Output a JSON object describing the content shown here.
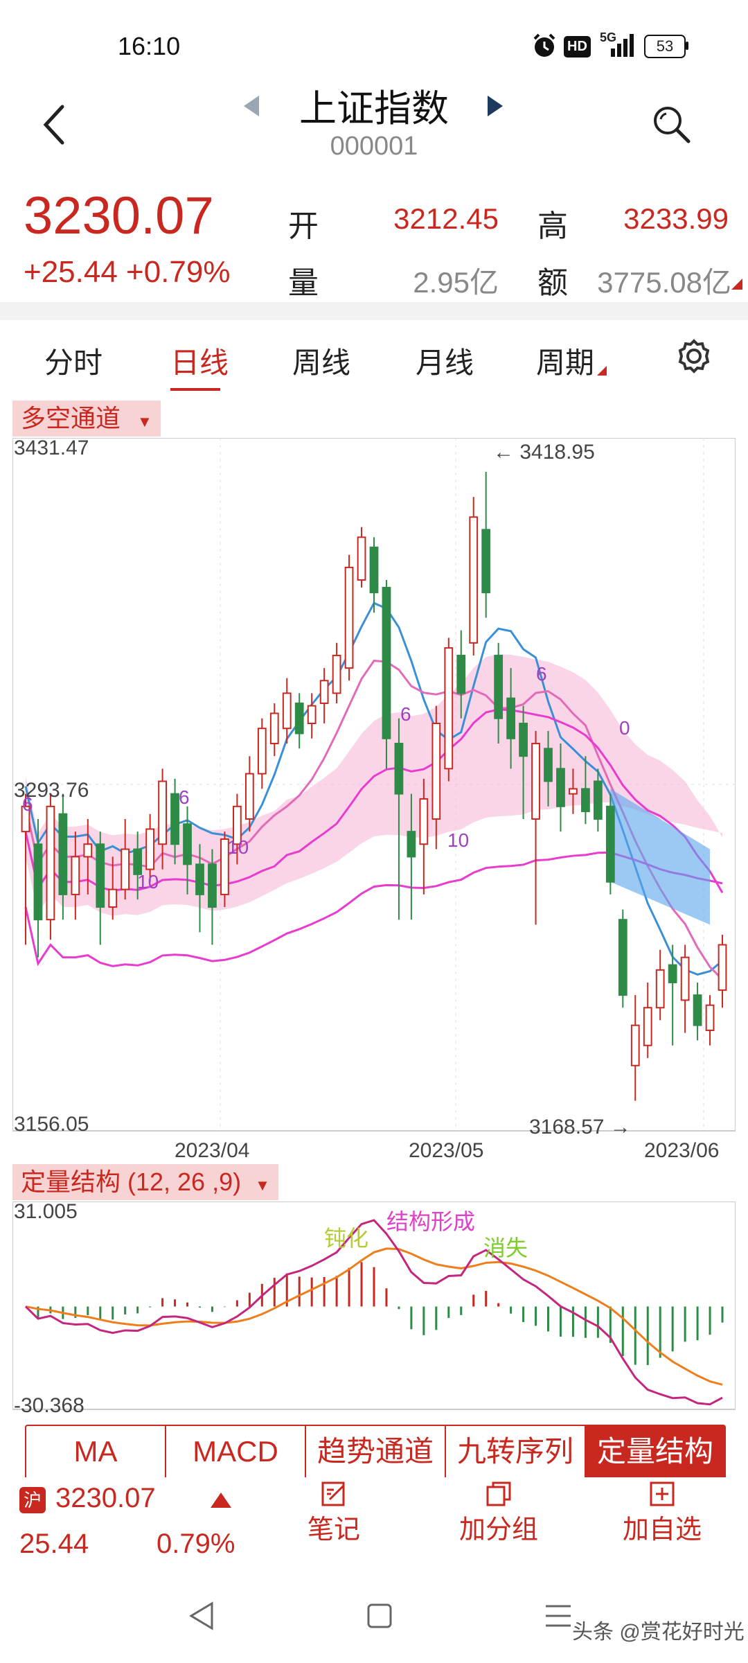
{
  "status": {
    "time": "16:10",
    "hd": "HD",
    "signal": "5G",
    "battery": "53"
  },
  "header": {
    "title": "上证指数",
    "code": "000001"
  },
  "quote": {
    "price": "3230.07",
    "change": "+25.44 +0.79%",
    "open_label": "开",
    "open": "3212.45",
    "high_label": "高",
    "high": "3233.99",
    "volume_label": "量",
    "volume": "2.95亿",
    "amount_label": "额",
    "amount": "3775.08亿"
  },
  "tabs": [
    "分时",
    "日线",
    "周线",
    "月线",
    "周期"
  ],
  "active_tab": "日线",
  "main_chart": {
    "indicator_label": "多空通道",
    "y_top": "3431.47",
    "y_mid": "3293.76",
    "y_bottom": "3156.05",
    "high_marker": "← 3418.95",
    "low_marker": "3168.57 →",
    "x_labels": [
      "2023/04",
      "2023/05",
      "2023/06"
    ],
    "annotations": [
      "6",
      "6",
      "10",
      "10",
      "6",
      "10",
      "6",
      "0"
    ]
  },
  "sub_chart": {
    "indicator_label": "定量结构 (12, 26 ,9)",
    "y_top": "31.005",
    "y_bottom": "-30.368",
    "annotations": {
      "a": "钝化",
      "b": "结构形成",
      "c": "消失"
    }
  },
  "indicator_tabs": [
    "MA",
    "MACD",
    "趋势通道",
    "九转序列",
    "定量结构"
  ],
  "active_indicator": "定量结构",
  "footer": {
    "market_badge": "沪",
    "price": "3230.07",
    "change": "25.44",
    "percent": "0.79%",
    "note": "笔记",
    "add_group": "加分组",
    "add_watch": "加自选"
  },
  "watermark": "头条 @赏花好时光",
  "colors": {
    "red": "#c8281f",
    "green": "#2e8b47",
    "pink": "#f5b3d6",
    "blue": "#9fcdf0",
    "magenta": "#e83ccf"
  },
  "chart_data": {
    "type": "candlestick",
    "note": "Daily K-line for 上证指数, approximate values",
    "candles": [
      {
        "o": 3275,
        "c": 3285,
        "h": 3290,
        "l": 3230
      },
      {
        "o": 3270,
        "c": 3240,
        "h": 3280,
        "l": 3225
      },
      {
        "o": 3240,
        "c": 3285,
        "h": 3290,
        "l": 3232
      },
      {
        "o": 3282,
        "c": 3250,
        "h": 3290,
        "l": 3240
      },
      {
        "o": 3250,
        "c": 3265,
        "h": 3275,
        "l": 3240
      },
      {
        "o": 3265,
        "c": 3270,
        "h": 3280,
        "l": 3250
      },
      {
        "o": 3270,
        "c": 3245,
        "h": 3275,
        "l": 3230
      },
      {
        "o": 3245,
        "c": 3252,
        "h": 3265,
        "l": 3240
      },
      {
        "o": 3252,
        "c": 3268,
        "h": 3280,
        "l": 3248
      },
      {
        "o": 3268,
        "c": 3258,
        "h": 3275,
        "l": 3248
      },
      {
        "o": 3260,
        "c": 3276,
        "h": 3282,
        "l": 3255
      },
      {
        "o": 3270,
        "c": 3295,
        "h": 3300,
        "l": 3260
      },
      {
        "o": 3290,
        "c": 3270,
        "h": 3296,
        "l": 3262
      },
      {
        "o": 3278,
        "c": 3262,
        "h": 3285,
        "l": 3250
      },
      {
        "o": 3262,
        "c": 3250,
        "h": 3270,
        "l": 3235
      },
      {
        "o": 3262,
        "c": 3245,
        "h": 3268,
        "l": 3230
      },
      {
        "o": 3250,
        "c": 3272,
        "h": 3275,
        "l": 3245
      },
      {
        "o": 3270,
        "c": 3285,
        "h": 3290,
        "l": 3262
      },
      {
        "o": 3280,
        "c": 3298,
        "h": 3305,
        "l": 3275
      },
      {
        "o": 3298,
        "c": 3316,
        "h": 3320,
        "l": 3292
      },
      {
        "o": 3310,
        "c": 3322,
        "h": 3326,
        "l": 3305
      },
      {
        "o": 3316,
        "c": 3330,
        "h": 3336,
        "l": 3310
      },
      {
        "o": 3326,
        "c": 3314,
        "h": 3330,
        "l": 3308
      },
      {
        "o": 3318,
        "c": 3325,
        "h": 3330,
        "l": 3312
      },
      {
        "o": 3326,
        "c": 3335,
        "h": 3340,
        "l": 3318
      },
      {
        "o": 3330,
        "c": 3345,
        "h": 3350,
        "l": 3326
      },
      {
        "o": 3340,
        "c": 3380,
        "h": 3385,
        "l": 3335
      },
      {
        "o": 3375,
        "c": 3392,
        "h": 3396,
        "l": 3372
      },
      {
        "o": 3388,
        "c": 3370,
        "h": 3392,
        "l": 3362
      },
      {
        "o": 3372,
        "c": 3312,
        "h": 3375,
        "l": 3300
      },
      {
        "o": 3310,
        "c": 3290,
        "h": 3320,
        "l": 3240
      },
      {
        "o": 3275,
        "c": 3265,
        "h": 3290,
        "l": 3240
      },
      {
        "o": 3270,
        "c": 3288,
        "h": 3296,
        "l": 3250
      },
      {
        "o": 3280,
        "c": 3318,
        "h": 3325,
        "l": 3268
      },
      {
        "o": 3300,
        "c": 3348,
        "h": 3352,
        "l": 3295
      },
      {
        "o": 3345,
        "c": 3330,
        "h": 3355,
        "l": 3320
      },
      {
        "o": 3350,
        "c": 3400,
        "h": 3408,
        "l": 3345
      },
      {
        "o": 3395,
        "c": 3370,
        "h": 3418,
        "l": 3360
      },
      {
        "o": 3345,
        "c": 3320,
        "h": 3350,
        "l": 3310
      },
      {
        "o": 3328,
        "c": 3312,
        "h": 3340,
        "l": 3300
      },
      {
        "o": 3318,
        "c": 3305,
        "h": 3325,
        "l": 3280
      },
      {
        "o": 3280,
        "c": 3310,
        "h": 3315,
        "l": 3238
      },
      {
        "o": 3308,
        "c": 3295,
        "h": 3315,
        "l": 3285
      },
      {
        "o": 3300,
        "c": 3285,
        "h": 3310,
        "l": 3275
      },
      {
        "o": 3290,
        "c": 3292,
        "h": 3300,
        "l": 3282
      },
      {
        "o": 3292,
        "c": 3283,
        "h": 3305,
        "l": 3278
      },
      {
        "o": 3295,
        "c": 3280,
        "h": 3300,
        "l": 3275
      },
      {
        "o": 3285,
        "c": 3255,
        "h": 3290,
        "l": 3250
      },
      {
        "o": 3240,
        "c": 3210,
        "h": 3244,
        "l": 3205
      },
      {
        "o": 3182,
        "c": 3198,
        "h": 3210,
        "l": 3168
      },
      {
        "o": 3190,
        "c": 3205,
        "h": 3215,
        "l": 3185
      },
      {
        "o": 3205,
        "c": 3220,
        "h": 3228,
        "l": 3200
      },
      {
        "o": 3222,
        "c": 3215,
        "h": 3230,
        "l": 3190
      },
      {
        "o": 3208,
        "c": 3225,
        "h": 3230,
        "l": 3195
      },
      {
        "o": 3210,
        "c": 3198,
        "h": 3215,
        "l": 3192
      },
      {
        "o": 3196,
        "c": 3206,
        "h": 3210,
        "l": 3190
      },
      {
        "o": 3212,
        "c": 3230,
        "h": 3234,
        "l": 3205
      }
    ]
  }
}
